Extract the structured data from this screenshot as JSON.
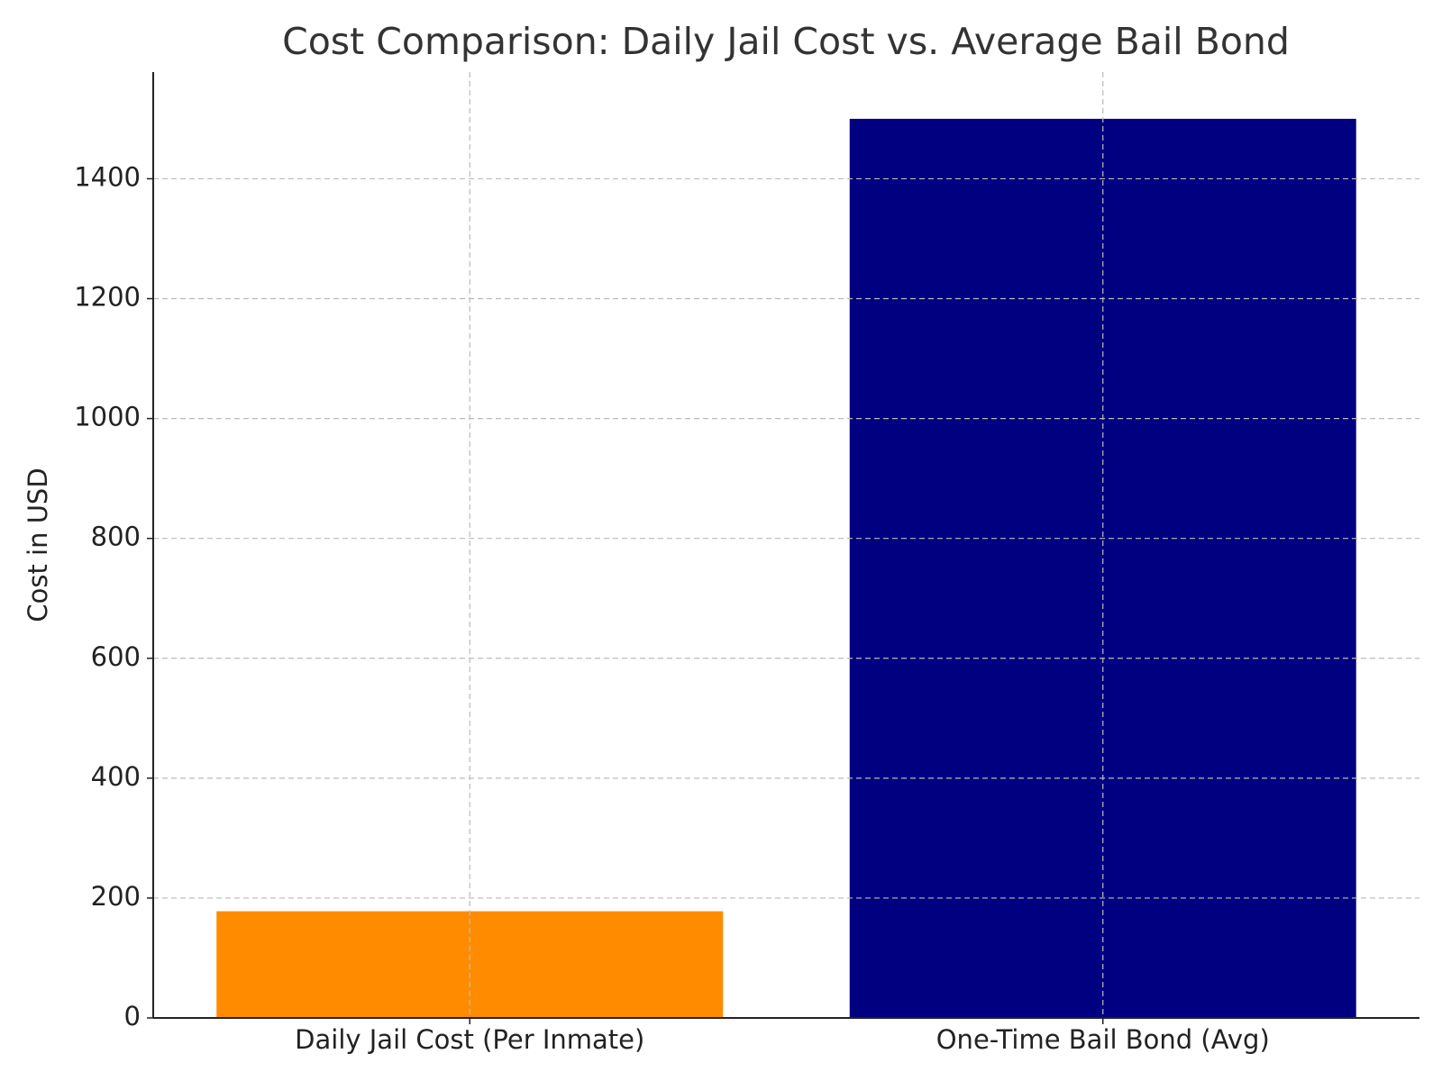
{
  "chart_data": {
    "type": "bar",
    "title": "Cost Comparison: Daily Jail Cost vs. Average Bail Bond",
    "ylabel": "Cost in USD",
    "categories": [
      "Daily Jail Cost (Per Inmate)",
      "One-Time Bail Bond (Avg)"
    ],
    "values": [
      178,
      1500
    ],
    "colors": [
      "#ff8c00",
      "#000080"
    ],
    "ylim": [
      0,
      1578
    ],
    "yticks": [
      0,
      200,
      400,
      600,
      800,
      1000,
      1200,
      1400
    ],
    "grid": true
  }
}
